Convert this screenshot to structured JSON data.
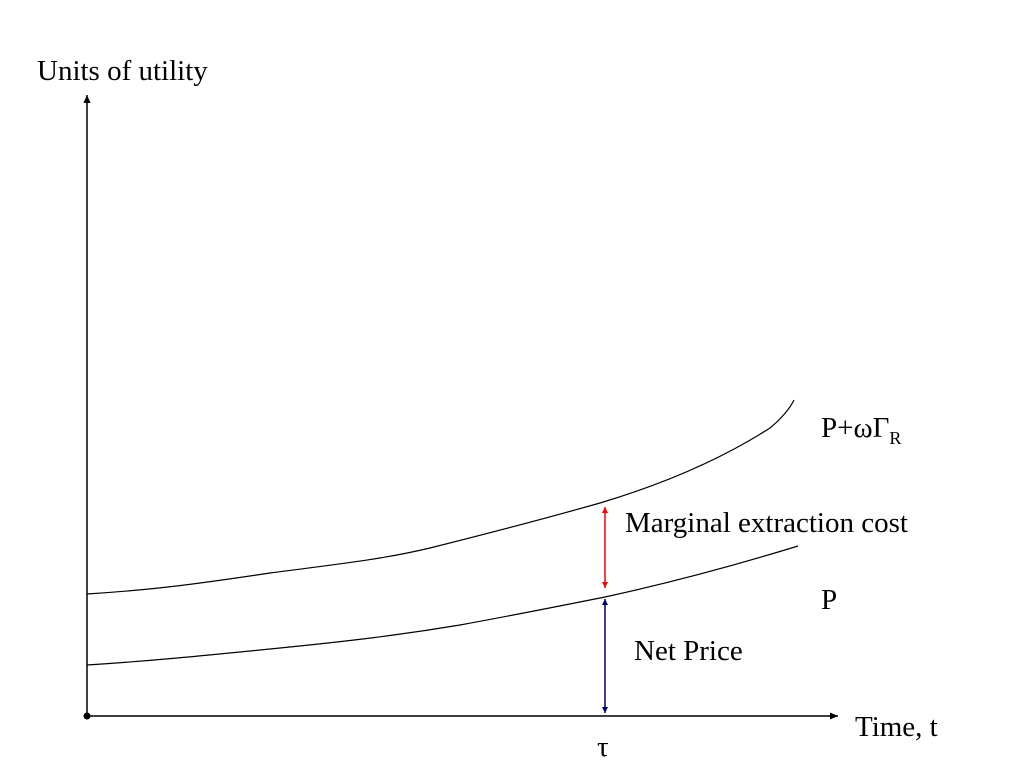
{
  "axes": {
    "y_label": "Units of utility",
    "x_label": "Time, t",
    "marker_label": "τ"
  },
  "curves": {
    "upper": {
      "label_main": "P+ωΓ",
      "label_sub": "R"
    },
    "lower": {
      "label": "P"
    }
  },
  "annotations": {
    "gap_label": "Marginal extraction cost",
    "net_price_label": "Net Price"
  },
  "colors": {
    "axis": "#000000",
    "curve": "#000000",
    "marginal_cost_arrow": "#ff0000",
    "net_price_arrow": "#000066"
  }
}
